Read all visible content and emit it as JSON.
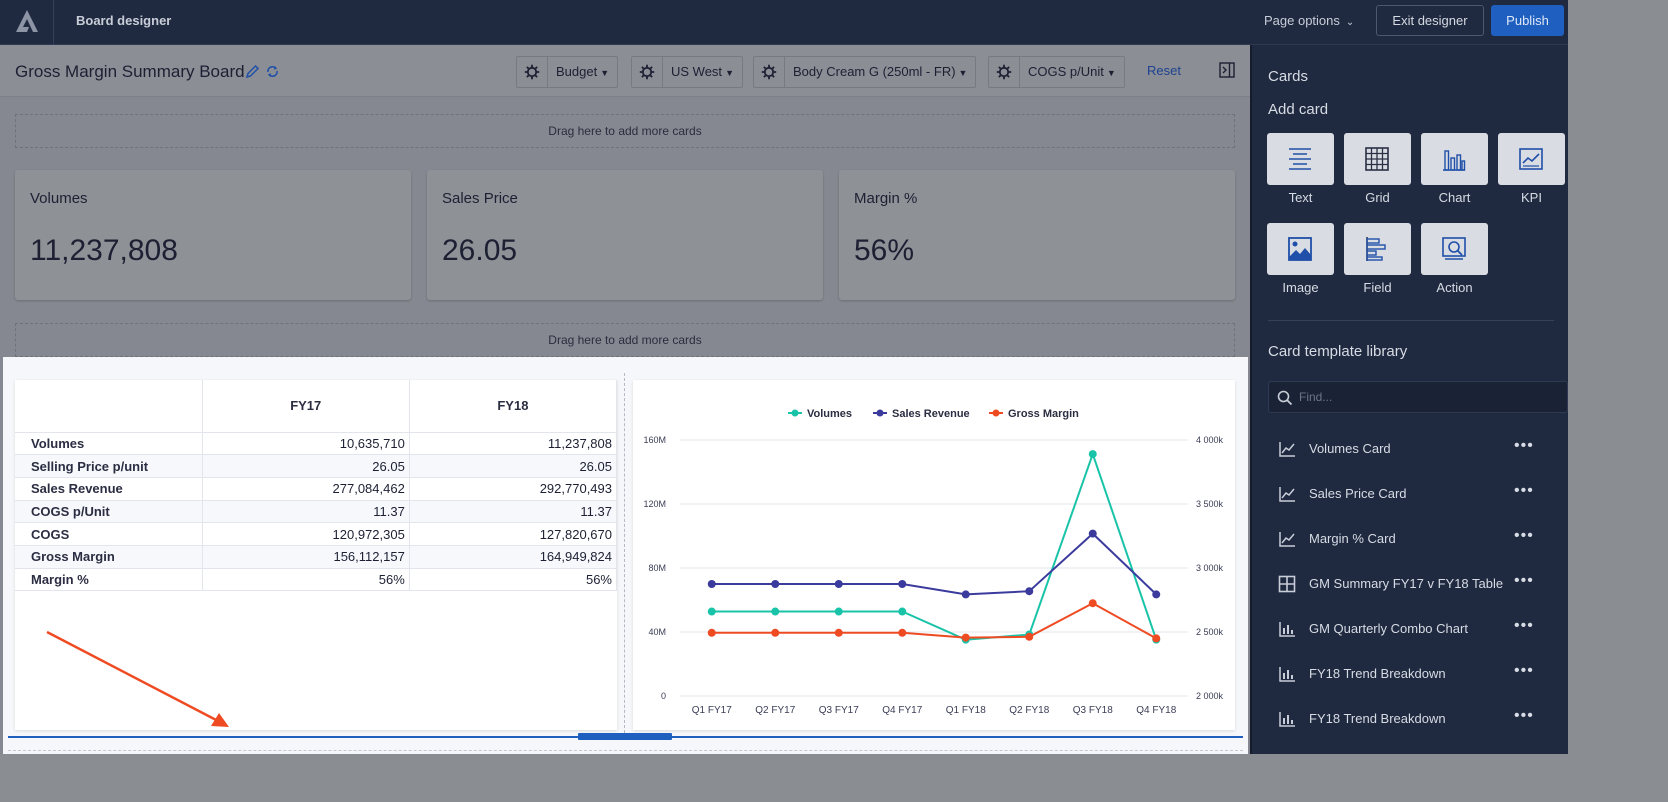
{
  "topbar": {
    "app_title": "Board designer",
    "page_options": "Page options",
    "exit_designer": "Exit designer",
    "publish": "Publish"
  },
  "board": {
    "title": "Gross Margin Summary Board",
    "filters": [
      {
        "label": "Budget"
      },
      {
        "label": "US West"
      },
      {
        "label": "Body Cream G (250ml - FR)"
      },
      {
        "label": "COGS p/Unit"
      }
    ],
    "reset": "Reset",
    "dropzone_text": "Drag here to add more cards",
    "kpis": [
      {
        "label": "Volumes",
        "value": "11,237,808"
      },
      {
        "label": "Sales Price",
        "value": "26.05"
      },
      {
        "label": "Margin %",
        "value": "56%"
      }
    ]
  },
  "grid": {
    "columns": [
      "",
      "FY17",
      "FY18"
    ],
    "rows": [
      {
        "label": "Volumes",
        "fy17": "10,635,710",
        "fy18": "11,237,808"
      },
      {
        "label": "Selling Price p/unit",
        "fy17": "26.05",
        "fy18": "26.05"
      },
      {
        "label": "Sales Revenue",
        "fy17": "277,084,462",
        "fy18": "292,770,493"
      },
      {
        "label": "COGS p/Unit",
        "fy17": "11.37",
        "fy18": "11.37"
      },
      {
        "label": "COGS",
        "fy17": "120,972,305",
        "fy18": "127,820,670"
      },
      {
        "label": "Gross Margin",
        "fy17": "156,112,157",
        "fy18": "164,949,824"
      },
      {
        "label": "Margin %",
        "fy17": "56%",
        "fy18": "56%"
      }
    ]
  },
  "chart_data": {
    "type": "line",
    "categories": [
      "Q1 FY17",
      "Q2 FY17",
      "Q3 FY17",
      "Q4 FY17",
      "Q1 FY18",
      "Q2 FY18",
      "Q3 FY18",
      "Q4 FY18"
    ],
    "left_axis": {
      "ticks": [
        "0",
        "40M",
        "80M",
        "120M",
        "160M"
      ],
      "range": [
        0,
        160
      ]
    },
    "right_axis": {
      "ticks": [
        "2 000k",
        "2 500k",
        "3 000k",
        "3 500k",
        "4 000k"
      ],
      "range": [
        2000,
        4000
      ]
    },
    "legend_position": "top-center",
    "series": [
      {
        "name": "Volumes",
        "color": "#19c3a8",
        "axis": "right",
        "values": [
          2660,
          2660,
          2660,
          2660,
          2440,
          2480,
          3890,
          2440
        ]
      },
      {
        "name": "Sales Revenue",
        "color": "#3b3b9e",
        "axis": "left",
        "values": [
          70,
          70,
          70,
          70,
          63.5,
          65.5,
          101.5,
          63.5
        ]
      },
      {
        "name": "Gross Margin",
        "color": "#ef4b23",
        "axis": "left",
        "values": [
          39.5,
          39.5,
          39.5,
          39.5,
          36.5,
          37,
          58,
          36
        ]
      }
    ],
    "grid": true
  },
  "panel": {
    "title": "Cards",
    "add_card": "Add card",
    "tiles": [
      {
        "label": "Text",
        "icon": "text-icon"
      },
      {
        "label": "Grid",
        "icon": "grid-icon"
      },
      {
        "label": "Chart",
        "icon": "chart-icon"
      },
      {
        "label": "KPI",
        "icon": "kpi-icon"
      },
      {
        "label": "Image",
        "icon": "image-icon"
      },
      {
        "label": "Field",
        "icon": "field-icon"
      },
      {
        "label": "Action",
        "icon": "action-icon"
      }
    ],
    "library_title": "Card template library",
    "search_placeholder": "Find...",
    "library": [
      {
        "label": "Volumes Card",
        "icon": "line-chart-icon"
      },
      {
        "label": "Sales Price Card",
        "icon": "line-chart-icon"
      },
      {
        "label": "Margin % Card",
        "icon": "line-chart-icon"
      },
      {
        "label": "GM Summary FY17 v FY18 Table",
        "icon": "table-icon"
      },
      {
        "label": "GM Quarterly Combo Chart",
        "icon": "bar-chart-icon"
      },
      {
        "label": "FY18 Trend Breakdown",
        "icon": "bar-chart-icon"
      },
      {
        "label": "FY18 Trend Breakdown",
        "icon": "bar-chart-icon"
      }
    ]
  }
}
